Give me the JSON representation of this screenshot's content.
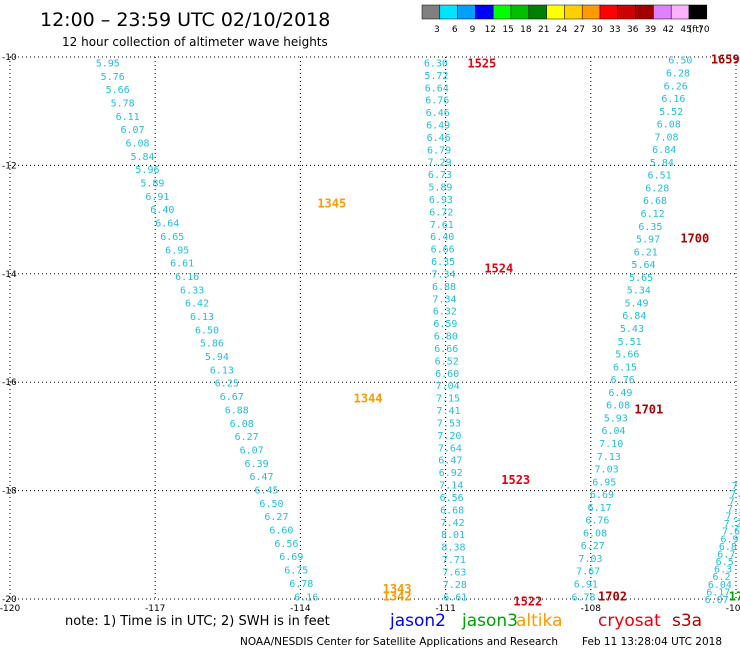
{
  "header": {
    "title": "12:00 – 23:59 UTC 02/10/2018",
    "subtitle": "12 hour collection of altimeter wave heights"
  },
  "legend": {
    "unit": "(ft)",
    "bins": [
      {
        "label": "3",
        "color": "#808080"
      },
      {
        "label": "6",
        "color": "#00e5ff"
      },
      {
        "label": "9",
        "color": "#00a0ff"
      },
      {
        "label": "12",
        "color": "#0000ff"
      },
      {
        "label": "15",
        "color": "#00ff00"
      },
      {
        "label": "18",
        "color": "#00c000"
      },
      {
        "label": "21",
        "color": "#008000"
      },
      {
        "label": "24",
        "color": "#ffff00"
      },
      {
        "label": "27",
        "color": "#ffd000"
      },
      {
        "label": "30",
        "color": "#ff9900"
      },
      {
        "label": "33",
        "color": "#ff0000"
      },
      {
        "label": "36",
        "color": "#d00000"
      },
      {
        "label": "39",
        "color": "#a00000"
      },
      {
        "label": "42",
        "color": "#e080ff"
      },
      {
        "label": "45",
        "color": "#ffb0ff"
      },
      {
        "label": "70",
        "color": "#000000"
      }
    ]
  },
  "map": {
    "lat_labels": [
      "-10",
      "-12",
      "-14",
      "-16",
      "-18",
      "-20"
    ],
    "lon_labels": [
      "-120",
      "-117",
      "-114",
      "-111",
      "-108",
      "-105"
    ],
    "lat_range": [
      -20,
      -10
    ],
    "lon_range": [
      -120,
      -105
    ],
    "tracks": [
      {
        "id": "left-track",
        "color": "#22bfda",
        "start_lon": -117.98,
        "lat_start": -10.1,
        "end_lon": -113.88,
        "lat_end": -19.95,
        "values": [
          "5.95",
          "5.76",
          "5.66",
          "5.78",
          "6.11",
          "6.07",
          "6.08",
          "5.84",
          "5.96",
          "5.89",
          "6.91",
          "6.40",
          "6.64",
          "6.65",
          "6.95",
          "6.61",
          "6.16",
          "6.33",
          "6.42",
          "6.13",
          "6.50",
          "5.86",
          "5.94",
          "6.13",
          "6.25",
          "6.67",
          "6.88",
          "6.08",
          "6.27",
          "6.07",
          "6.39",
          "6.47",
          "6.45",
          "6.50",
          "6.27",
          "6.60",
          "6.56",
          "6.69",
          "6.75",
          "6.78",
          "6.16"
        ]
      },
      {
        "id": "center-track",
        "color": "#22bfda",
        "start_lon": -111.2,
        "lat_start": -10.1,
        "end_lon": -110.8,
        "lat_end": -19.95,
        "values": [
          "6.30",
          "5.72",
          "6.64",
          "6.76",
          "6.46",
          "6.49",
          "6.46",
          "6.79",
          "7.29",
          "6.73",
          "5.89",
          "6.93",
          "6.72",
          "7.61",
          "6.40",
          "6.66",
          "6.35",
          "7.34",
          "6.88",
          "7.34",
          "6.32",
          "6.59",
          "6.80",
          "6.66",
          "6.52",
          "6.60",
          "7.04",
          "7.15",
          "7.41",
          "7.53",
          "7.20",
          "7.64",
          "6.47",
          "6.92",
          "7.14",
          "6.56",
          "6.68",
          "7.42",
          "8.01",
          "8.38",
          "7.71",
          "7.63",
          "7.28",
          "6.61"
        ]
      },
      {
        "id": "right-track",
        "color": "#22bfda",
        "start_lon": -106.15,
        "lat_start": -10.05,
        "end_lon": -108.15,
        "lat_end": -19.95,
        "values": [
          "6.50",
          "6.28",
          "6.26",
          "6.16",
          "5.52",
          "6.08",
          "7.08",
          "6.84",
          "5.84",
          "6.51",
          "6.28",
          "6.68",
          "6.12",
          "6.35",
          "5.97",
          "6.21",
          "5.64",
          "5.65",
          "5.34",
          "5.49",
          "6.84",
          "5.43",
          "5.51",
          "5.66",
          "6.15",
          "6.76",
          "6.49",
          "6.08",
          "5.93",
          "6.04",
          "7.10",
          "7.13",
          "7.03",
          "6.95",
          "6.69",
          "6.17",
          "6.76",
          "6.08",
          "6.27",
          "7.03",
          "7.67",
          "6.91",
          "6.78"
        ]
      },
      {
        "id": "far-right-track",
        "color": "#22bfda",
        "start_lon": -104.9,
        "lat_start": -17.9,
        "end_lon": -105.4,
        "lat_end": -20.0,
        "values": [
          "7.5",
          "7.1",
          "7.4",
          "7.0",
          "7.3",
          "7.2",
          "7.6",
          "6.9",
          "6.8",
          "6.7",
          "6.5",
          "6.3",
          "6.2",
          "6.04",
          "6.17",
          "6.07"
        ]
      }
    ],
    "time_labels": [
      {
        "text": "1525",
        "color": "#e8000e",
        "lat": -10.12,
        "lon": -110.55
      },
      {
        "text": "1524",
        "color": "#e8000e",
        "lat": -13.9,
        "lon": -110.2
      },
      {
        "text": "1523",
        "color": "#e8000e",
        "lat": -17.8,
        "lon": -109.85
      },
      {
        "text": "1522",
        "color": "#e8000e",
        "lat": -20.05,
        "lon": -109.6
      },
      {
        "text": "1345",
        "color": "#ff9900",
        "lat": -12.7,
        "lon": -113.65
      },
      {
        "text": "1344",
        "color": "#ff9900",
        "lat": -16.3,
        "lon": -112.9
      },
      {
        "text": "1343",
        "color": "#ff9900",
        "lat": -19.82,
        "lon": -112.3
      },
      {
        "text": "1342",
        "color": "#ff9900",
        "lat": -19.95,
        "lon": -112.3
      },
      {
        "text": "1659",
        "color": "#b00000",
        "lat": -10.05,
        "lon": -105.52
      },
      {
        "text": "1700",
        "color": "#b00000",
        "lat": -13.35,
        "lon": -106.15
      },
      {
        "text": "1701",
        "color": "#b00000",
        "lat": -16.5,
        "lon": -107.1
      },
      {
        "text": "1702",
        "color": "#b00000",
        "lat": -19.95,
        "lon": -107.85
      },
      {
        "text": "17",
        "color": "#00a000",
        "lat": -19.95,
        "lon": -105.15
      }
    ]
  },
  "footer": {
    "note": "note: 1) Time is in UTC; 2) SWH is in feet",
    "satellites": [
      {
        "name": "jason2",
        "color": "#0000ff"
      },
      {
        "name": "jason3",
        "color": "#00a000"
      },
      {
        "name": "altika",
        "color": "#ff9900"
      },
      {
        "name": "cryosat",
        "color": "#e8000e"
      },
      {
        "name": "s3a",
        "color": "#b00000"
      }
    ],
    "credit": "NOAA/NESDIS Center for Satellite Applications and Research",
    "timestamp": "Feb 11 13:28:04 UTC 2018"
  }
}
